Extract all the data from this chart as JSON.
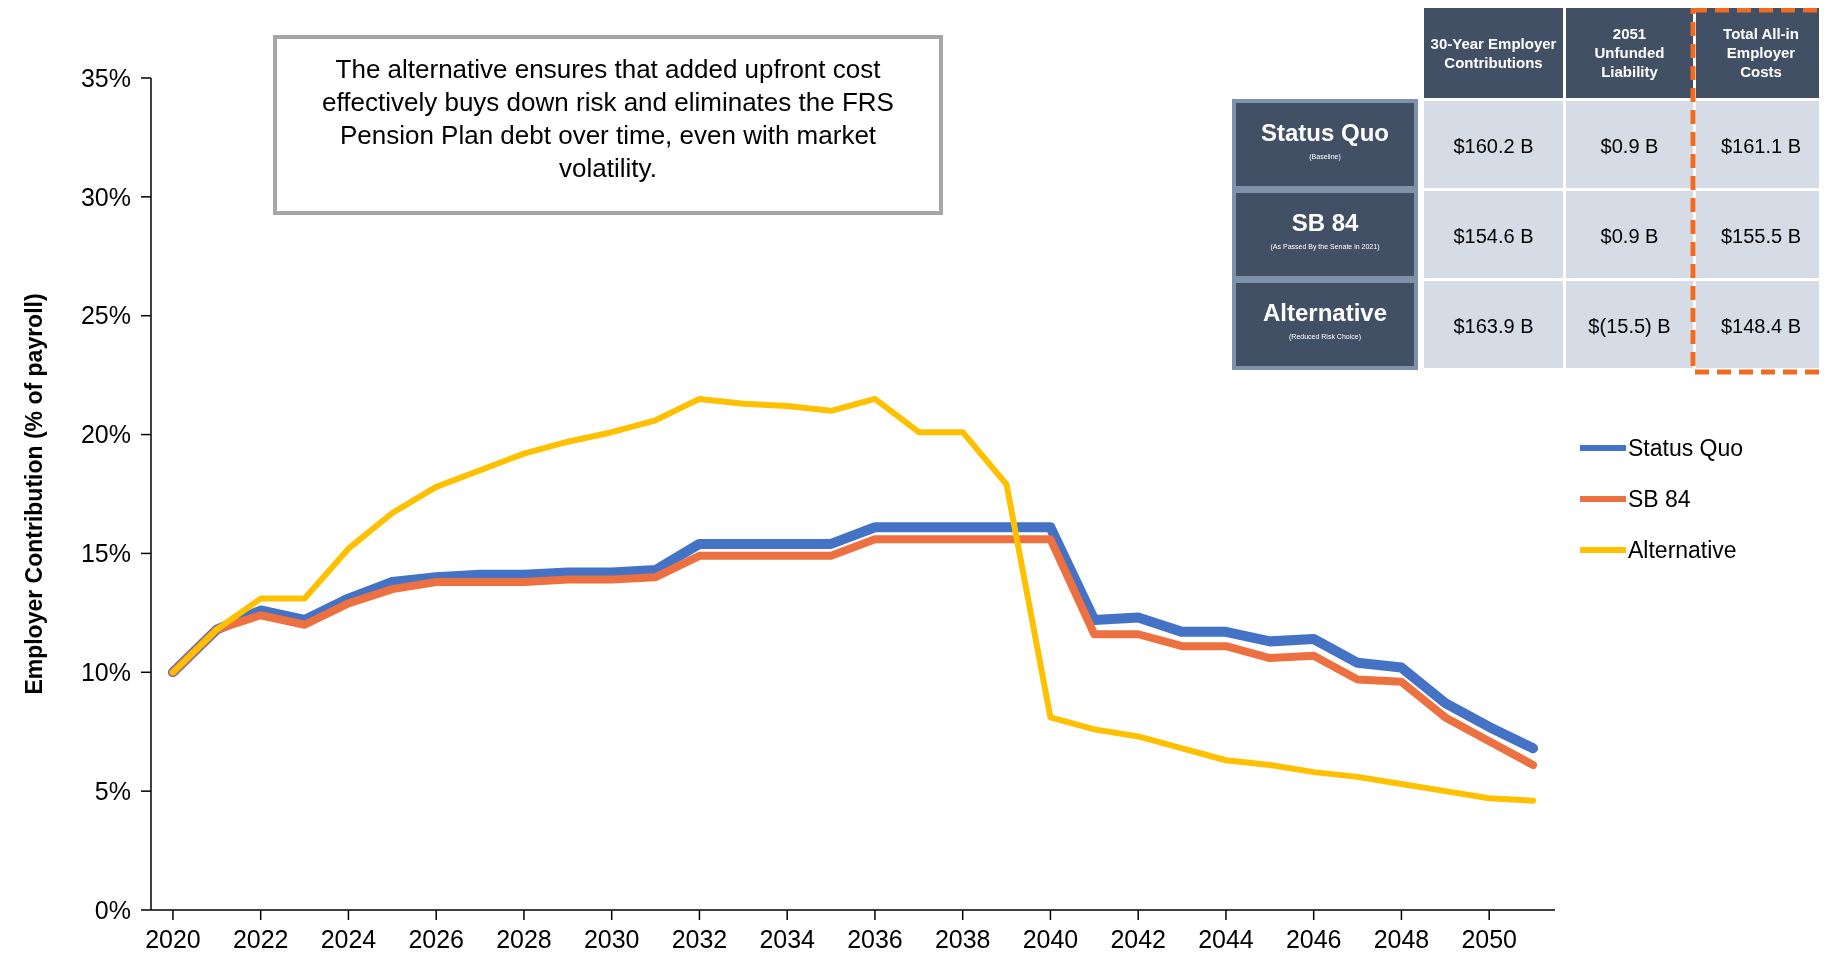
{
  "chart_data": [
    {
      "type": "line",
      "ylabel": "Employer Contribution (% of payroll)",
      "annotations": [
        "The alternative ensures that added upfront cost effectively buys down risk and eliminates the FRS Pension Plan debt over time, even with market volatility."
      ],
      "x": [
        2020,
        2021,
        2022,
        2023,
        2024,
        2025,
        2026,
        2027,
        2028,
        2029,
        2030,
        2031,
        2032,
        2033,
        2034,
        2035,
        2036,
        2037,
        2038,
        2039,
        2040,
        2041,
        2042,
        2043,
        2044,
        2045,
        2046,
        2047,
        2048,
        2049,
        2050,
        2051
      ],
      "series": [
        {
          "name": "Status Quo",
          "color": "#4472c4",
          "values": [
            10.0,
            11.8,
            12.6,
            12.2,
            13.1,
            13.8,
            14.0,
            14.1,
            14.1,
            14.2,
            14.2,
            14.3,
            15.4,
            15.4,
            15.4,
            15.4,
            16.1,
            16.1,
            16.1,
            16.1,
            16.1,
            12.2,
            12.3,
            11.7,
            11.7,
            11.3,
            11.4,
            10.4,
            10.2,
            8.7,
            7.7,
            6.8
          ]
        },
        {
          "name": "SB 84",
          "color": "#ed7040",
          "values": [
            10.0,
            11.8,
            12.4,
            12.0,
            12.9,
            13.5,
            13.8,
            13.8,
            13.8,
            13.9,
            13.9,
            14.0,
            14.9,
            14.9,
            14.9,
            14.9,
            15.6,
            15.6,
            15.6,
            15.6,
            15.6,
            11.6,
            11.6,
            11.1,
            11.1,
            10.6,
            10.7,
            9.7,
            9.6,
            8.1,
            7.1,
            6.1
          ]
        },
        {
          "name": "Alternative",
          "color": "#ffc000",
          "values": [
            10.0,
            11.8,
            13.1,
            13.1,
            15.2,
            16.7,
            17.8,
            18.5,
            19.2,
            19.7,
            20.1,
            20.6,
            21.5,
            21.3,
            21.2,
            21.0,
            21.5,
            20.1,
            20.1,
            17.9,
            8.1,
            7.6,
            7.3,
            6.8,
            6.3,
            6.1,
            5.8,
            5.6,
            5.3,
            5.0,
            4.7,
            4.6
          ]
        }
      ],
      "xlim": [
        2019.5,
        2051.5
      ],
      "xticks": [
        2020,
        2022,
        2024,
        2026,
        2028,
        2030,
        2032,
        2034,
        2036,
        2038,
        2040,
        2042,
        2044,
        2046,
        2048,
        2050
      ],
      "ylim": [
        0,
        35
      ],
      "yticks": [
        {
          "value": 0,
          "label": "0%"
        },
        {
          "value": 5,
          "label": "5%"
        },
        {
          "value": 10,
          "label": "10%"
        },
        {
          "value": 15,
          "label": "15%"
        },
        {
          "value": 20,
          "label": "20%"
        },
        {
          "value": 25,
          "label": "25%"
        },
        {
          "value": 30,
          "label": "30%"
        },
        {
          "value": 35,
          "label": "35%"
        }
      ],
      "grid": false,
      "legend": "right",
      "marker": "none",
      "line_style": "solid"
    },
    {
      "type": "other",
      "categories": [
        "30-Year Employer Contributions",
        "2051 Unfunded Liability",
        "Total All-in Employer Costs"
      ],
      "y_categories": [
        "Status Quo",
        "SB 84",
        "Alternative"
      ],
      "y2_categories": [
        "(Baseline)",
        "(As Passed By the Senate in 2021)",
        "(Reduced Risk Choice)"
      ],
      "cell_labels": [
        [
          "$160.2 B",
          "$0.9 B",
          "$161.1 B"
        ],
        [
          "$154.6 B",
          "$0.9 B",
          "$155.5 B"
        ],
        [
          "$163.9 B",
          "$(15.5) B",
          "$148.4 B"
        ]
      ]
    }
  ]
}
